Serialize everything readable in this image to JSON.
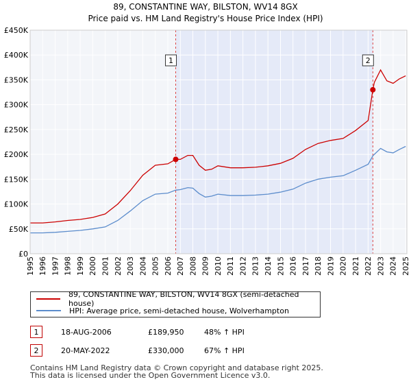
{
  "chart_data": {
    "type": "line",
    "title": "89, CONSTANTINE WAY, BILSTON, WV14 8GX",
    "subtitle": "Price paid vs. HM Land Registry's House Price Index (HPI)",
    "ylim": [
      0,
      450000
    ],
    "xlim": [
      1995,
      2025.1
    ],
    "yticks": [
      {
        "value": 0,
        "label": "£0"
      },
      {
        "value": 50000,
        "label": "£50K"
      },
      {
        "value": 100000,
        "label": "£100K"
      },
      {
        "value": 150000,
        "label": "£150K"
      },
      {
        "value": 200000,
        "label": "£200K"
      },
      {
        "value": 250000,
        "label": "£250K"
      },
      {
        "value": 300000,
        "label": "£300K"
      },
      {
        "value": 350000,
        "label": "£350K"
      },
      {
        "value": 400000,
        "label": "£400K"
      },
      {
        "value": 450000,
        "label": "£450K"
      }
    ],
    "xticks": [
      "1995",
      "1996",
      "1997",
      "1998",
      "1999",
      "2000",
      "2001",
      "2002",
      "2003",
      "2004",
      "2005",
      "2006",
      "2007",
      "2008",
      "2009",
      "2010",
      "2011",
      "2012",
      "2013",
      "2014",
      "2015",
      "2016",
      "2017",
      "2018",
      "2019",
      "2020",
      "2021",
      "2022",
      "2023",
      "2024",
      "2025"
    ],
    "shaded_range": [
      2006.63,
      2022.38
    ],
    "series": [
      {
        "name": "89, CONSTANTINE WAY, BILSTON, WV14 8GX (semi-detached house)",
        "color": "#cc0000",
        "x": [
          1995,
          1996,
          1997,
          1998,
          1999,
          2000,
          2001,
          2002,
          2003,
          2004,
          2005,
          2006,
          2006.63,
          2007,
          2007.6,
          2008,
          2008.5,
          2009,
          2009.5,
          2010,
          2011,
          2012,
          2013,
          2014,
          2015,
          2016,
          2017,
          2018,
          2019,
          2020,
          2021,
          2022,
          2022.38,
          2022.5,
          2023,
          2023.5,
          2024,
          2024.5,
          2025
        ],
        "values": [
          62000,
          62000,
          64000,
          67000,
          69000,
          73000,
          80000,
          100000,
          127000,
          158000,
          178000,
          181000,
          189950,
          190000,
          198000,
          198000,
          178000,
          168000,
          170000,
          177000,
          173000,
          173000,
          174000,
          177000,
          182000,
          192000,
          210000,
          222000,
          228000,
          232000,
          248000,
          268000,
          330000,
          345000,
          370000,
          348000,
          343000,
          352000,
          358000
        ]
      },
      {
        "name": "HPI: Average price, semi-detached house, Wolverhampton",
        "color": "#5b8ccc",
        "x": [
          1995,
          1996,
          1997,
          1998,
          1999,
          2000,
          2001,
          2002,
          2003,
          2004,
          2005,
          2006,
          2006.63,
          2007,
          2007.6,
          2008,
          2008.5,
          2009,
          2009.5,
          2010,
          2011,
          2012,
          2013,
          2014,
          2015,
          2016,
          2017,
          2018,
          2019,
          2020,
          2021,
          2022,
          2022.38,
          2022.5,
          2023,
          2023.5,
          2024,
          2024.5,
          2025
        ],
        "values": [
          42000,
          42000,
          43000,
          45000,
          47000,
          50000,
          54000,
          67000,
          86000,
          107000,
          120000,
          122000,
          128000,
          129000,
          133000,
          132000,
          121000,
          114000,
          116000,
          120000,
          117000,
          117000,
          118000,
          120000,
          124000,
          130000,
          142000,
          150000,
          154000,
          157000,
          168000,
          180000,
          197000,
          200000,
          212000,
          205000,
          203000,
          210000,
          216000
        ]
      }
    ],
    "sales": [
      {
        "num": "1",
        "x": 2006.63,
        "value": 189950
      },
      {
        "num": "2",
        "x": 2022.38,
        "value": 330000
      }
    ]
  },
  "legend": {
    "property_label": "89, CONSTANTINE WAY, BILSTON, WV14 8GX (semi-detached house)",
    "hpi_label": "HPI: Average price, semi-detached house, Wolverhampton",
    "property_color": "#cc0000",
    "hpi_color": "#5b8ccc"
  },
  "transactions": [
    {
      "num": "1",
      "date": "18-AUG-2006",
      "price": "£189,950",
      "hpi": "48% ↑ HPI"
    },
    {
      "num": "2",
      "date": "20-MAY-2022",
      "price": "£330,000",
      "hpi": "67% ↑ HPI"
    }
  ],
  "footer": {
    "line1": "Contains HM Land Registry data © Crown copyright and database right 2025.",
    "line2": "This data is licensed under the Open Government Licence v3.0."
  }
}
